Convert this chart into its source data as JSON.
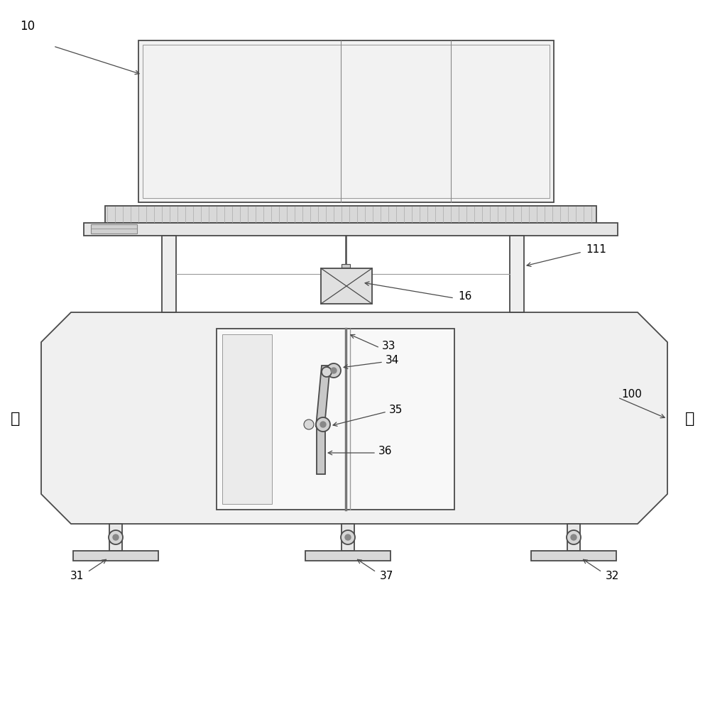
{
  "bg_color": "#ffffff",
  "line_color": "#4a4a4a",
  "lc2": "#666666",
  "label_10": "10",
  "label_111": "111",
  "label_16": "16",
  "label_100": "100",
  "label_31": "31",
  "label_32": "32",
  "label_33": "33",
  "label_34": "34",
  "label_35": "35",
  "label_36": "36",
  "label_37": "37",
  "label_front": "前",
  "label_back": "后",
  "figsize": [
    10.0,
    9.89
  ]
}
